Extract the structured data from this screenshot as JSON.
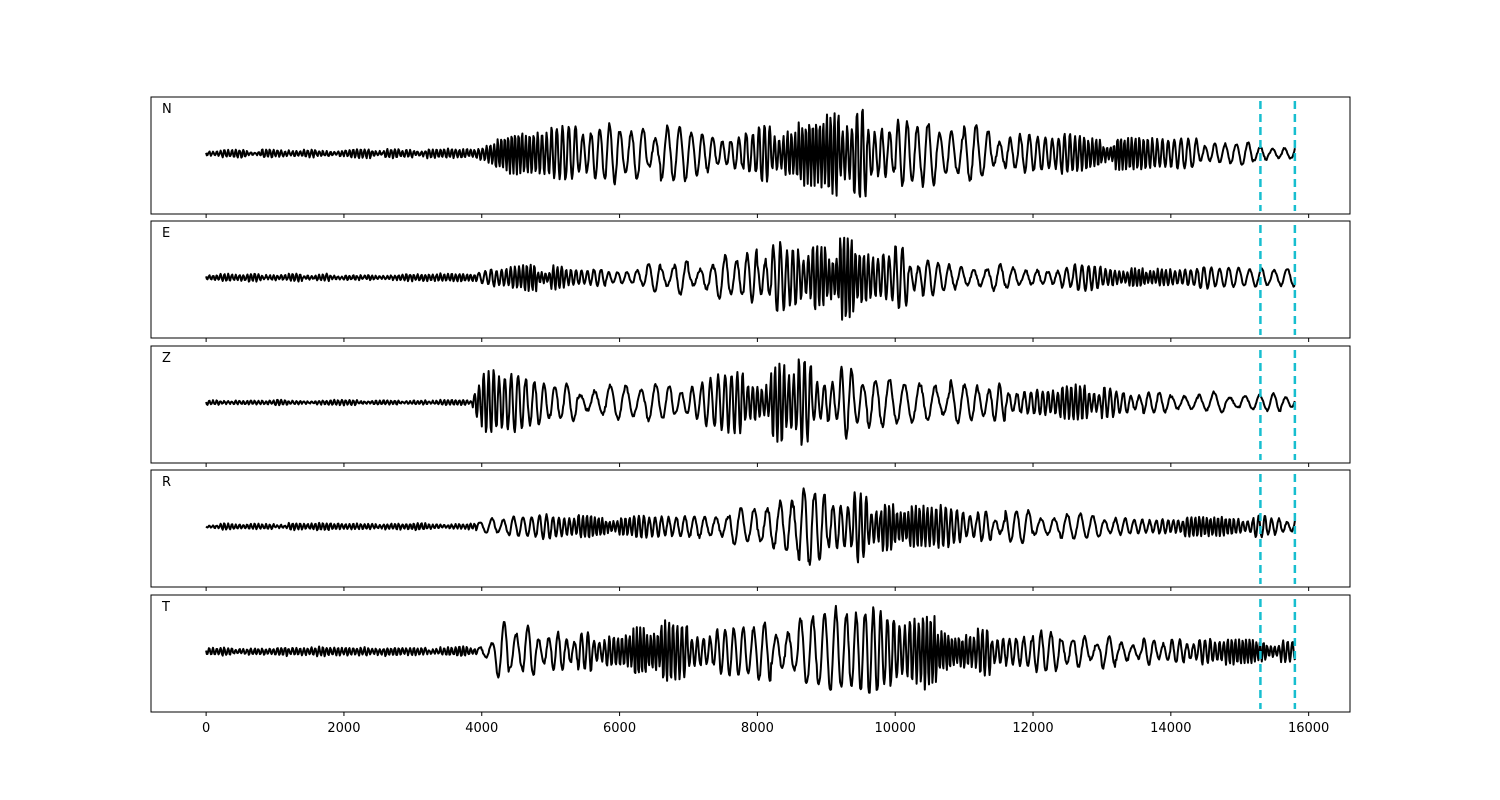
{
  "chart_data": {
    "type": "line",
    "panels": [
      {
        "label": "N",
        "seed": 11,
        "onset": 3950,
        "env": [
          [
            0,
            0.07
          ],
          [
            3900,
            0.1
          ],
          [
            4300,
            0.55
          ],
          [
            6000,
            0.55
          ],
          [
            8000,
            0.6
          ],
          [
            9000,
            0.8
          ],
          [
            9500,
            0.95
          ],
          [
            11000,
            0.55
          ],
          [
            13000,
            0.4
          ],
          [
            15000,
            0.25
          ],
          [
            15800,
            0.2
          ]
        ],
        "freq": 1.4
      },
      {
        "label": "E",
        "seed": 23,
        "onset": 3950,
        "env": [
          [
            0,
            0.07
          ],
          [
            3900,
            0.08
          ],
          [
            4300,
            0.25
          ],
          [
            6000,
            0.25
          ],
          [
            7800,
            0.45
          ],
          [
            8600,
            0.95
          ],
          [
            9000,
            0.9
          ],
          [
            10500,
            0.45
          ],
          [
            12000,
            0.3
          ],
          [
            14000,
            0.22
          ],
          [
            15800,
            0.2
          ]
        ],
        "freq": 1.3
      },
      {
        "label": "Z",
        "seed": 37,
        "onset": 3900,
        "env": [
          [
            0,
            0.05
          ],
          [
            3850,
            0.05
          ],
          [
            3950,
            0.7
          ],
          [
            4600,
            0.9
          ],
          [
            5000,
            0.4
          ],
          [
            7000,
            0.35
          ],
          [
            8600,
            0.95
          ],
          [
            9500,
            0.6
          ],
          [
            11000,
            0.4
          ],
          [
            13000,
            0.35
          ],
          [
            15800,
            0.15
          ]
        ],
        "freq": 1.1
      },
      {
        "label": "R",
        "seed": 53,
        "onset": 3950,
        "env": [
          [
            0,
            0.06
          ],
          [
            3900,
            0.07
          ],
          [
            4300,
            0.25
          ],
          [
            6000,
            0.25
          ],
          [
            7800,
            0.4
          ],
          [
            8400,
            0.9
          ],
          [
            9000,
            0.95
          ],
          [
            10000,
            0.5
          ],
          [
            12000,
            0.3
          ],
          [
            14500,
            0.22
          ],
          [
            15800,
            0.22
          ]
        ],
        "freq": 1.3
      },
      {
        "label": "T",
        "seed": 71,
        "onset": 3950,
        "env": [
          [
            0,
            0.07
          ],
          [
            3900,
            0.1
          ],
          [
            4300,
            0.55
          ],
          [
            6000,
            0.55
          ],
          [
            8000,
            0.6
          ],
          [
            9000,
            0.8
          ],
          [
            9500,
            0.95
          ],
          [
            11000,
            0.55
          ],
          [
            13000,
            0.4
          ],
          [
            15000,
            0.25
          ],
          [
            15800,
            0.2
          ]
        ],
        "freq": 1.4
      }
    ],
    "x_start": 0,
    "x_end": 15800,
    "xlim": [
      -800,
      16600
    ],
    "xticks": [
      0,
      2000,
      4000,
      6000,
      8000,
      10000,
      12000,
      14000,
      16000
    ],
    "vlines": [
      15300,
      15800
    ],
    "vline_color": "#17becf",
    "trace_color": "#000000",
    "xlabel": "",
    "ylabel": "",
    "title": "",
    "grid": false,
    "legend": "none"
  }
}
